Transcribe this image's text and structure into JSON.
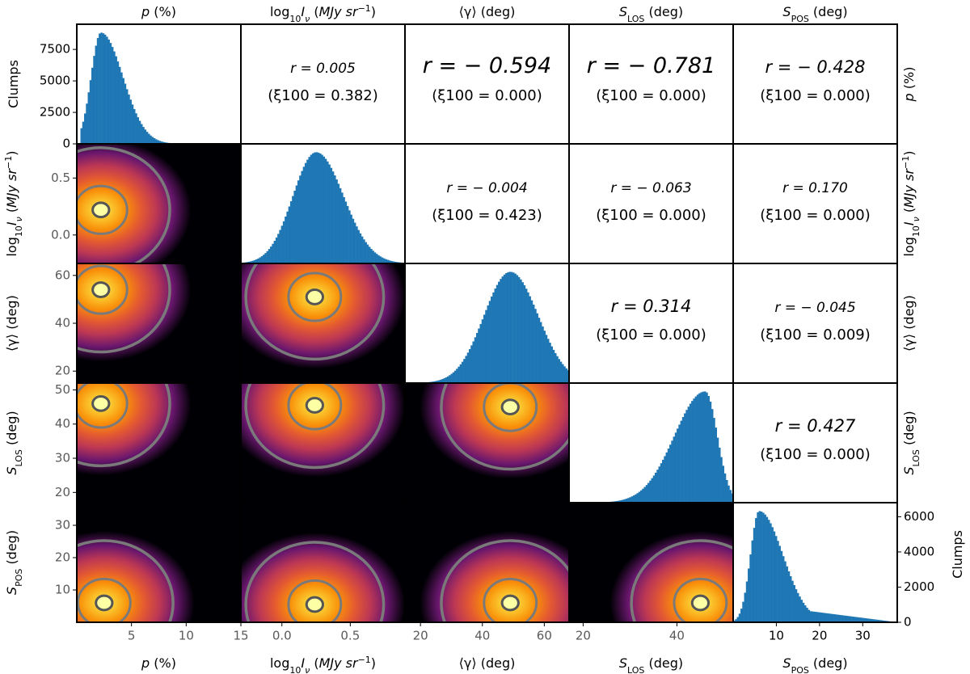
{
  "chart_data": {
    "type": "corner",
    "variables": [
      {
        "key": "p",
        "label": "p (%)"
      },
      {
        "key": "logI",
        "label": "log10 Iν (MJy sr−1)"
      },
      {
        "key": "gamma",
        "label": "⟨γ⟩ (deg)"
      },
      {
        "key": "slos",
        "label": "S_LOS (deg)"
      },
      {
        "key": "spos",
        "label": "S_POS (deg)"
      }
    ],
    "labels": {
      "p": "p (%)",
      "logI": "log10 Iν (MJy sr−1)",
      "gamma": "⟨γ⟩ (deg)",
      "slos": "S_LOS (deg)",
      "spos": "S_POS (deg)",
      "clumps": "Clumps"
    },
    "diagonal_axes": {
      "top_left_ylabel": "Clumps",
      "top_left_yticks": [
        "0",
        "2500",
        "5000",
        "7500"
      ],
      "top_left_ylim": [
        0,
        9500
      ],
      "bottom_right_ylabel": "Clumps",
      "bottom_right_yticks": [
        "0",
        "2000",
        "4000",
        "6000"
      ],
      "bottom_right_ylim": [
        0,
        6800
      ]
    },
    "axis_ticks": {
      "p": {
        "range": [
          0,
          15
        ],
        "ticks": [
          "5",
          "10",
          "15"
        ]
      },
      "logI": {
        "range": [
          -0.3,
          0.9
        ],
        "ticks": [
          "0.0",
          "0.5"
        ]
      },
      "gamma": {
        "range": [
          15,
          68
        ],
        "ticks": [
          "20",
          "40",
          "60"
        ]
      },
      "slos": {
        "range": [
          17,
          52
        ],
        "ticks": [
          "20",
          "30",
          "40",
          "50"
        ]
      },
      "slos_x": {
        "range": [
          17,
          52
        ],
        "ticks": [
          "20",
          "40"
        ]
      },
      "spos": {
        "range": [
          0,
          38
        ],
        "ticks": [
          "10",
          "20",
          "30"
        ]
      },
      "logI_y": {
        "range": [
          -0.25,
          0.8
        ],
        "ticks": [
          "0.0",
          "0.5"
        ]
      },
      "gamma_y": {
        "range": [
          15,
          65
        ],
        "ticks": [
          "20",
          "40",
          "60"
        ]
      },
      "spos_y": {
        "range": [
          0,
          37
        ],
        "ticks": [
          "10",
          "20",
          "30"
        ]
      }
    },
    "correlations": [
      {
        "row": 0,
        "col": 1,
        "r": "r = 0.005",
        "xi": "(ξ100 = 0.382)",
        "size": "small"
      },
      {
        "row": 0,
        "col": 2,
        "r": "r = − 0.594",
        "xi": "(ξ100 = 0.000)",
        "size": "big"
      },
      {
        "row": 0,
        "col": 3,
        "r": "r = − 0.781",
        "xi": "(ξ100 = 0.000)",
        "size": "big"
      },
      {
        "row": 0,
        "col": 4,
        "r": "r = − 0.428",
        "xi": "(ξ100 = 0.000)",
        "size": "med"
      },
      {
        "row": 1,
        "col": 2,
        "r": "r = − 0.004",
        "xi": "(ξ100 = 0.423)",
        "size": "small"
      },
      {
        "row": 1,
        "col": 3,
        "r": "r = − 0.063",
        "xi": "(ξ100 = 0.000)",
        "size": "small"
      },
      {
        "row": 1,
        "col": 4,
        "r": "r = 0.170",
        "xi": "(ξ100 = 0.000)",
        "size": "small"
      },
      {
        "row": 2,
        "col": 3,
        "r": "r = 0.314",
        "xi": "(ξ100 = 0.000)",
        "size": "med"
      },
      {
        "row": 2,
        "col": 4,
        "r": "r = − 0.045",
        "xi": "(ξ100 = 0.009)",
        "size": "small"
      },
      {
        "row": 3,
        "col": 4,
        "r": "r = 0.427",
        "xi": "(ξ100 = 0.000)",
        "size": "med"
      }
    ],
    "histograms": [
      {
        "var": "p",
        "x_range": [
          0,
          15
        ],
        "peak": 2.2,
        "sigma_left": 0.9,
        "sigma_right": 2.0,
        "max": 9000
      },
      {
        "var": "logI",
        "x_range": [
          -0.3,
          0.9
        ],
        "peak": 0.25,
        "sigma_left": 0.17,
        "sigma_right": 0.2,
        "max": 1
      },
      {
        "var": "gamma",
        "x_range": [
          15,
          68
        ],
        "peak": 49,
        "sigma_left": 8.5,
        "sigma_right": 9.0,
        "max": 1
      },
      {
        "var": "slos",
        "x_range": [
          17,
          52
        ],
        "peak": 46,
        "sigma_left": 6.5,
        "sigma_right": 2.6,
        "max": 1
      },
      {
        "var": "spos",
        "x_range": [
          0,
          38
        ],
        "peak": 6,
        "sigma_left": 2.0,
        "sigma_right": 5.5,
        "max": 6300,
        "tail": 1000
      }
    ],
    "density_panels": [
      {
        "row": 1,
        "col": 0,
        "peak": [
          2.2,
          0.22
        ]
      },
      {
        "row": 2,
        "col": 0,
        "peak": [
          2.2,
          54
        ]
      },
      {
        "row": 2,
        "col": 1,
        "peak": [
          0.24,
          51
        ]
      },
      {
        "row": 3,
        "col": 0,
        "peak": [
          2.2,
          46
        ]
      },
      {
        "row": 3,
        "col": 1,
        "peak": [
          0.24,
          45.5
        ]
      },
      {
        "row": 3,
        "col": 2,
        "peak": [
          49,
          45
        ]
      },
      {
        "row": 4,
        "col": 0,
        "peak": [
          2.5,
          6
        ]
      },
      {
        "row": 4,
        "col": 1,
        "peak": [
          0.24,
          5.5
        ]
      },
      {
        "row": 4,
        "col": 2,
        "peak": [
          49,
          6
        ]
      },
      {
        "row": 4,
        "col": 3,
        "peak": [
          45,
          6
        ]
      }
    ],
    "colors": {
      "histogram": "#1f77b4",
      "contour_outer": "#7a7a7a",
      "contour_inner": "#7a7a7a",
      "colormap": "inferno"
    },
    "grid": false
  }
}
